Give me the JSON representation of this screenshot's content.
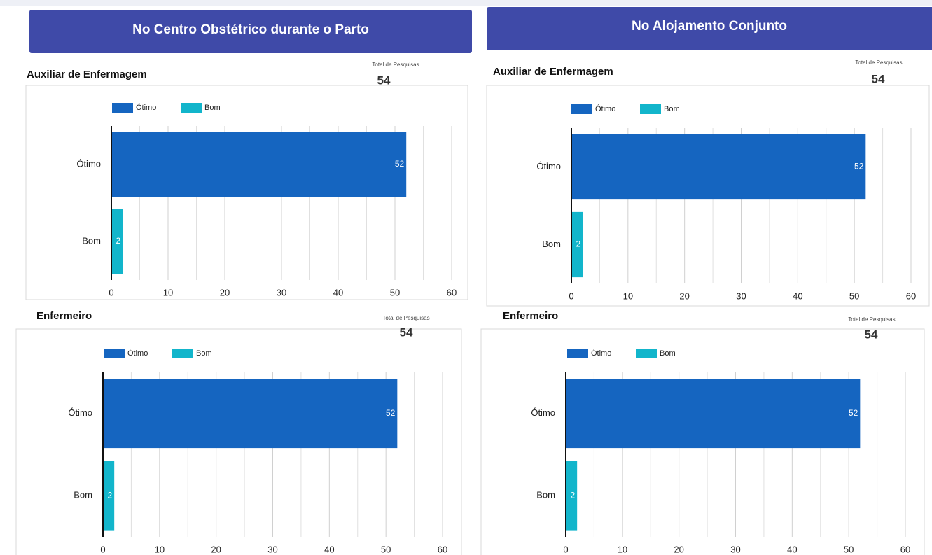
{
  "headers": [
    "No Centro Obstétrico durante o Parto",
    "No Alojamento Conjunto"
  ],
  "chart_data": [
    {
      "type": "bar",
      "orientation": "horizontal",
      "title": "Auxiliar de Enfermagem",
      "total_label": "Total de Pesquisas",
      "total": 54,
      "categories": [
        "Ótimo",
        "Bom"
      ],
      "values": [
        52,
        2
      ],
      "colors": [
        "#1565c0",
        "#12b5cb"
      ],
      "xlim": [
        0,
        60
      ],
      "xticks": [
        0,
        10,
        20,
        30,
        40,
        50,
        60
      ],
      "minor_xticks": [
        5,
        15,
        25,
        35,
        45,
        55
      ],
      "grid": true,
      "legend": true
    },
    {
      "type": "bar",
      "orientation": "horizontal",
      "title": "Auxiliar de Enfermagem",
      "total_label": "Total de Pesquisas",
      "total": 54,
      "categories": [
        "Ótimo",
        "Bom"
      ],
      "values": [
        52,
        2
      ],
      "colors": [
        "#1565c0",
        "#12b5cb"
      ],
      "xlim": [
        0,
        60
      ],
      "xticks": [
        0,
        10,
        20,
        30,
        40,
        50,
        60
      ],
      "minor_xticks": [
        5,
        15,
        25,
        35,
        45,
        55
      ],
      "grid": true,
      "legend": true
    },
    {
      "type": "bar",
      "orientation": "horizontal",
      "title": "Enfermeiro",
      "total_label": "Total de Pesquisas",
      "total": 54,
      "categories": [
        "Ótimo",
        "Bom"
      ],
      "values": [
        52,
        2
      ],
      "colors": [
        "#1565c0",
        "#12b5cb"
      ],
      "xlim": [
        0,
        60
      ],
      "xticks": [
        0,
        10,
        20,
        30,
        40,
        50,
        60
      ],
      "minor_xticks": [
        5,
        15,
        25,
        35,
        45,
        55
      ],
      "grid": true,
      "legend": true
    },
    {
      "type": "bar",
      "orientation": "horizontal",
      "title": "Enfermeiro",
      "total_label": "Total de Pesquisas",
      "total": 54,
      "categories": [
        "Ótimo",
        "Bom"
      ],
      "values": [
        52,
        2
      ],
      "colors": [
        "#1565c0",
        "#12b5cb"
      ],
      "xlim": [
        0,
        60
      ],
      "xticks": [
        0,
        10,
        20,
        30,
        40,
        50,
        60
      ],
      "minor_xticks": [
        5,
        15,
        25,
        35,
        45,
        55
      ],
      "grid": true,
      "legend": true
    }
  ]
}
